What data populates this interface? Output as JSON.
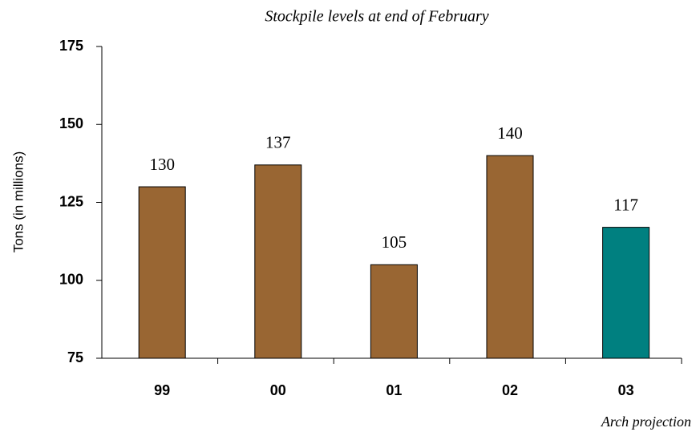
{
  "chart_data": {
    "type": "bar",
    "title": "Stockpile levels at end of February",
    "y_label": "Tons (in millions)",
    "annotation": "Arch projection",
    "categories": [
      "99",
      "00",
      "01",
      "02",
      "03"
    ],
    "values": [
      130,
      137,
      105,
      140,
      117
    ],
    "colors": [
      "#996633",
      "#996633",
      "#996633",
      "#996633",
      "#008080"
    ],
    "ylim": [
      75,
      175
    ],
    "yticks": [
      75,
      100,
      125,
      150,
      175
    ]
  }
}
